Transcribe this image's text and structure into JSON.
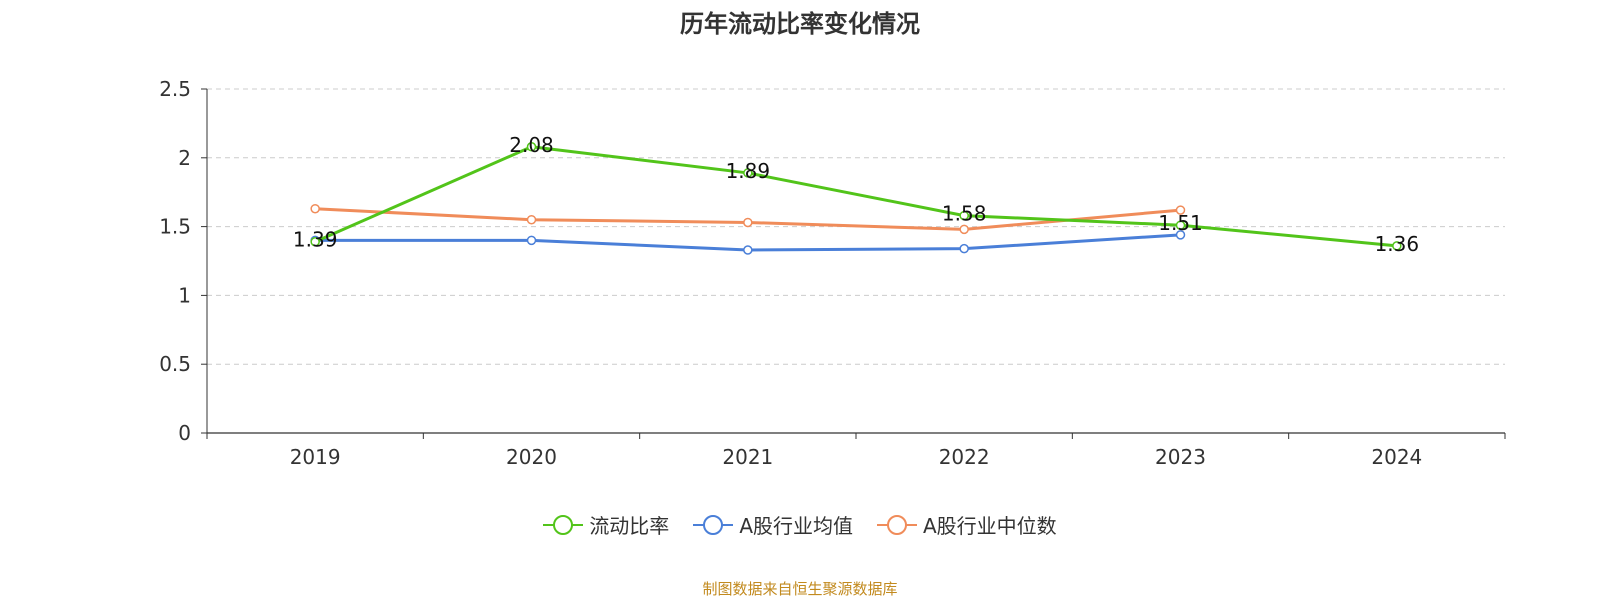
{
  "chart_data": {
    "type": "line",
    "title": "历年流动比率变化情况",
    "xlabel": "",
    "ylabel": "",
    "categories": [
      "2019",
      "2020",
      "2021",
      "2022",
      "2023",
      "2024"
    ],
    "ylim": [
      0,
      2.5
    ],
    "yticks": [
      "0",
      "0.5",
      "1",
      "1.5",
      "2",
      "2.5"
    ],
    "grid": true,
    "legend_position": "bottom",
    "series": [
      {
        "name": "流动比率",
        "color": "#52c41a",
        "values": [
          1.39,
          2.08,
          1.89,
          1.58,
          1.51,
          1.36
        ],
        "labels": [
          "1.39",
          "2.08",
          "1.89",
          "1.58",
          "1.51",
          "1.36"
        ]
      },
      {
        "name": "A股行业均值",
        "color": "#4a7fd8",
        "values": [
          1.4,
          1.4,
          1.33,
          1.34,
          1.44,
          null
        ],
        "labels": []
      },
      {
        "name": "A股行业中位数",
        "color": "#f08c5a",
        "values": [
          1.63,
          1.55,
          1.53,
          1.48,
          1.62,
          null
        ],
        "labels": []
      }
    ]
  },
  "source_note": "制图数据来自恒生聚源数据库"
}
